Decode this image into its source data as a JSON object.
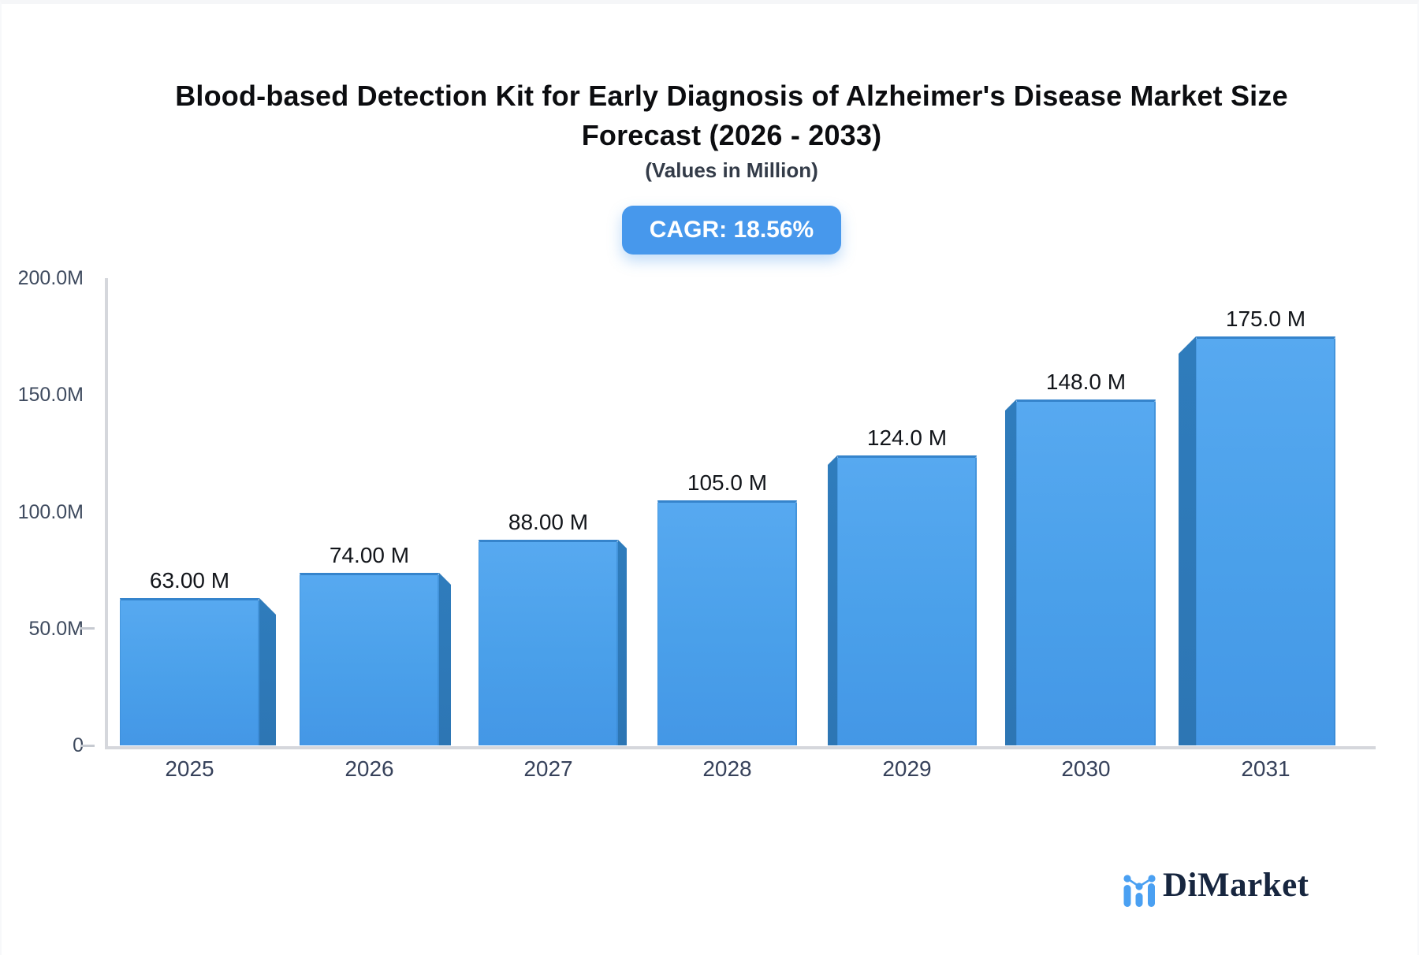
{
  "page": {
    "background": "#f3f5f8",
    "card_background": "#ffffff"
  },
  "header": {
    "title_line1": "Blood-based Detection Kit for Early Diagnosis of Alzheimer's Disease Market Size",
    "title_line2": "Forecast (2026 - 2033)",
    "subtitle": "(Values in Million)",
    "cagr_badge": "CAGR: 18.56%",
    "badge_color": "#4798ec"
  },
  "chart_data": {
    "type": "bar",
    "title": "Blood-based Detection Kit for Early Diagnosis of Alzheimer's Disease Market Size Forecast (2026 - 2033)",
    "subtitle": "(Values in Million)",
    "unit": "Million",
    "categories": [
      "2025",
      "2026",
      "2027",
      "2028",
      "2029",
      "2030",
      "2031"
    ],
    "values": [
      63,
      74,
      88,
      105,
      124,
      148,
      175
    ],
    "value_labels": [
      "63.00 M",
      "74.00 M",
      "88.00 M",
      "105.0 M",
      "124.0 M",
      "148.0 M",
      "175.0 M"
    ],
    "ylim": [
      0,
      200
    ],
    "ytick_values": [
      200,
      150,
      100,
      50,
      0
    ],
    "ytick_labels": [
      "200.0M",
      "150.0M",
      "100.0M",
      "50.0M",
      "0"
    ],
    "grid": false,
    "legend": "none",
    "bar_color": "#4fa3eb",
    "bar_side_color": "#2d76b4",
    "axis_color": "#d5d7dc",
    "style": "pseudo-3d bars, side panels face center vanishing point"
  },
  "footer": {
    "brand": "DiMarket",
    "logo_icon": "bar-line-chart-icon",
    "brand_color": "#17263f",
    "logo_blue": "#4aa0f2"
  }
}
